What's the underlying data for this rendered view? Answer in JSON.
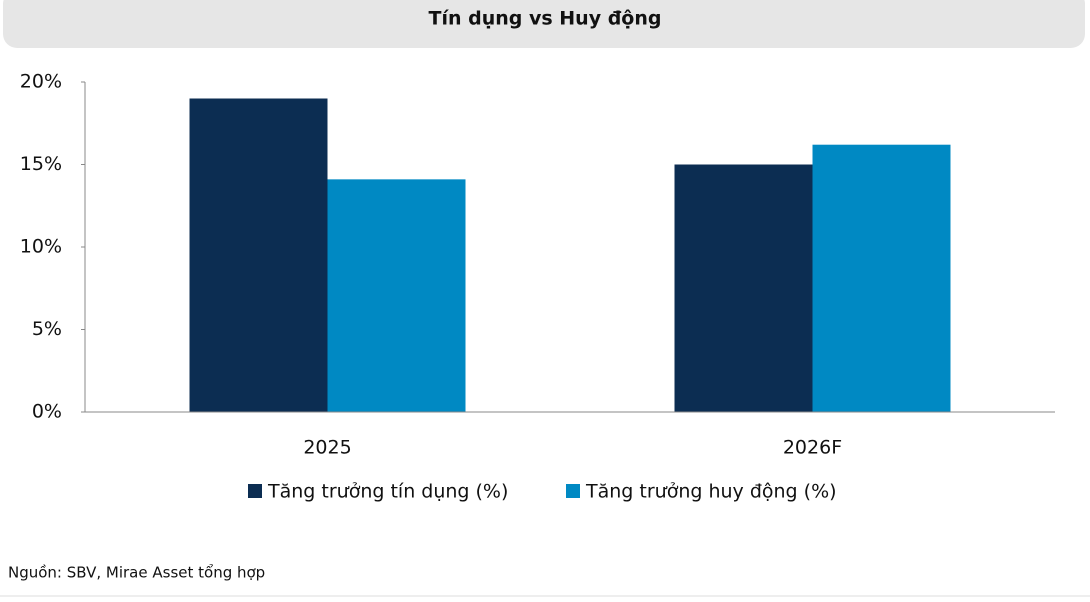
{
  "chart_data": {
    "type": "bar",
    "title": "Tín dụng vs Huy động",
    "categories": [
      "2025",
      "2026F"
    ],
    "series": [
      {
        "name": "Tăng trưởng tín dụng (%)",
        "color": "#0c2d52",
        "values": [
          19,
          15
        ]
      },
      {
        "name": "Tăng trưởng huy động (%)",
        "color": "#0089c3",
        "values": [
          14.1,
          16.2
        ]
      }
    ],
    "ylim": [
      0,
      20
    ],
    "yticks": [
      {
        "value": 0,
        "label": "0%"
      },
      {
        "value": 5,
        "label": "5%"
      },
      {
        "value": 10,
        "label": "10%"
      },
      {
        "value": 15,
        "label": "15%"
      },
      {
        "value": 20,
        "label": "20%"
      }
    ],
    "legend": "bottom",
    "source": "Nguồn: SBV, Mirae Asset tổng hợp"
  }
}
